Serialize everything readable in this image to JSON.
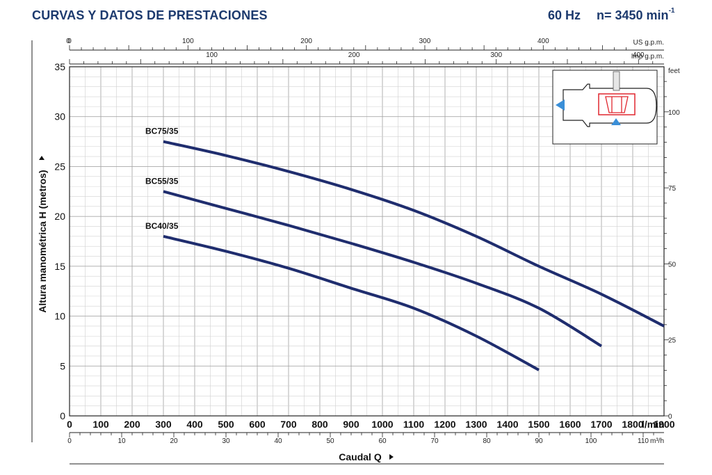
{
  "header": {
    "title": "CURVAS Y DATOS DE PRESTACIONES",
    "frequency": "60 Hz",
    "speed": "n= 3450 min",
    "speed_exp": "-1"
  },
  "colors": {
    "curve": "#1f2d6e",
    "title": "#1c3a6e",
    "grid": "#b5b5b5",
    "accent": "#3a8fd8",
    "impeller": "#e0262e"
  },
  "chart_data": {
    "type": "line",
    "x_unit": "l/min",
    "y_label": "Altura manométrica H (metros)",
    "x_label": "Caudal Q",
    "xlim": [
      0,
      1900
    ],
    "ylim": [
      0,
      35
    ],
    "x_ticks": [
      "0",
      "100",
      "200",
      "300",
      "400",
      "500",
      "600",
      "700",
      "800",
      "900",
      "1000",
      "1100",
      "1200",
      "1300",
      "1400",
      "1500",
      "1600",
      "1700",
      "1800",
      "1900"
    ],
    "y_ticks": [
      "0",
      "5",
      "10",
      "15",
      "20",
      "25",
      "30",
      "35"
    ],
    "series": [
      {
        "name": "BC75/35",
        "x": [
          300,
          500,
          700,
          900,
          1100,
          1300,
          1500,
          1700,
          1900
        ],
        "y": [
          27.5,
          26.1,
          24.5,
          22.7,
          20.6,
          18.0,
          15.0,
          12.2,
          9.0
        ]
      },
      {
        "name": "BC55/35",
        "x": [
          300,
          500,
          700,
          900,
          1100,
          1300,
          1500,
          1700
        ],
        "y": [
          22.5,
          20.8,
          19.1,
          17.3,
          15.4,
          13.3,
          10.8,
          7.0
        ]
      },
      {
        "name": "BC40/35",
        "x": [
          300,
          500,
          700,
          900,
          1100,
          1300,
          1500
        ],
        "y": [
          18.0,
          16.5,
          14.8,
          12.8,
          10.8,
          8.0,
          4.6
        ]
      }
    ],
    "secondary_axes": {
      "us_gpm": {
        "label": "US g.p.m.",
        "ticks": [
          "0",
          "100",
          "200",
          "300",
          "400"
        ]
      },
      "imp_gpm": {
        "label": "Imp g.p.m.",
        "ticks": [
          "100",
          "200",
          "300",
          "400"
        ]
      },
      "feet": {
        "label": "feet",
        "ticks": [
          "0",
          "25",
          "50",
          "75",
          "100"
        ]
      },
      "m3h": {
        "label": "m³/h",
        "ticks": [
          "0",
          "10",
          "20",
          "30",
          "40",
          "50",
          "60",
          "70",
          "80",
          "90",
          "100",
          "110"
        ]
      }
    }
  }
}
